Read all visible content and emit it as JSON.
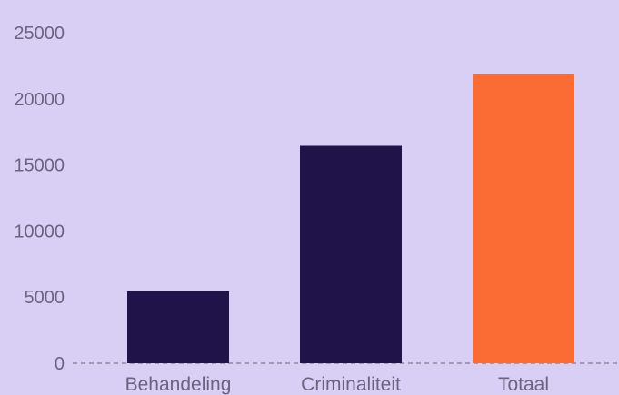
{
  "chart_data": {
    "type": "bar",
    "categories": [
      "Behandeling",
      "Criminaliteit",
      "Totaal"
    ],
    "values": [
      5450,
      16450,
      21900
    ],
    "colors": [
      "#20134a",
      "#20134a",
      "#fb6b34"
    ],
    "yticks": [
      0,
      5000,
      10000,
      15000,
      20000,
      25000
    ],
    "ylim": [
      0,
      25000
    ],
    "grid": false,
    "baseline_style": "dashed",
    "background": "#d9cff5",
    "axis_text_color": "#6b6480"
  }
}
